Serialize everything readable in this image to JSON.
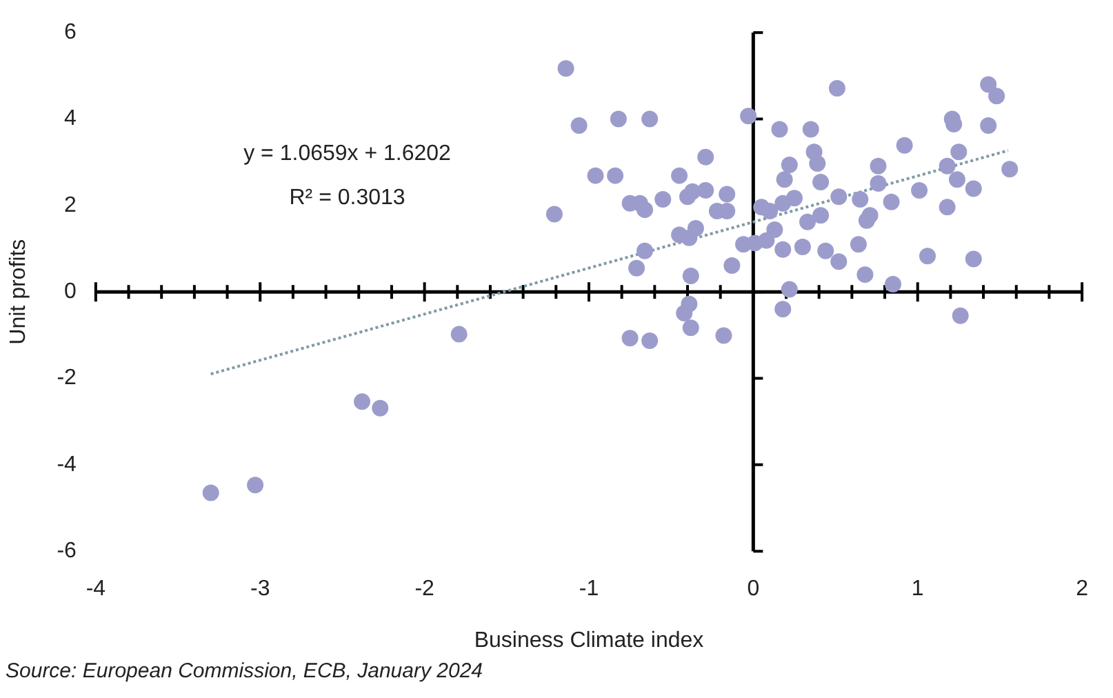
{
  "chart_data": {
    "type": "scatter",
    "xlabel": "Business Climate index",
    "ylabel": "Unit profits",
    "annotations": [
      "y = 1.0659x + 1.6202",
      "R² = 0.3013",
      "Source: European Commission, ECB, January 2024"
    ],
    "xlim": [
      -4,
      2
    ],
    "xticks": [
      -4,
      -3,
      -2,
      -1,
      0,
      1,
      2
    ],
    "ylim": [
      -6,
      6
    ],
    "yticks": [
      -6,
      -4,
      -2,
      0,
      2,
      4,
      6
    ],
    "legend": false,
    "series": [
      {
        "marker": "circle",
        "color": "#9c9ccc",
        "x": [
          -3.3,
          -3.03,
          -2.38,
          -2.27,
          -1.79,
          -1.21,
          -1.14,
          -1.06,
          -0.82,
          -0.63,
          -0.96,
          -0.84,
          -0.29,
          -0.45,
          -0.75,
          -0.69,
          -0.66,
          -0.55,
          -0.4,
          -0.37,
          -0.29,
          -0.16,
          -0.22,
          -0.16,
          -0.03,
          -0.45,
          -0.39,
          -0.35,
          -0.66,
          -0.71,
          -0.38,
          -0.13,
          -0.39,
          -0.42,
          -0.38,
          -0.75,
          -0.63,
          -0.18,
          -0.06,
          0.01,
          0.05,
          0.16,
          0.35,
          0.51,
          0.37,
          0.39,
          0.22,
          0.19,
          0.41,
          0.52,
          0.25,
          0.18,
          0.1,
          0.33,
          0.41,
          0.13,
          0.08,
          0.18,
          0.3,
          0.44,
          0.52,
          0.22,
          0.18,
          0.64,
          0.68,
          0.69,
          0.71,
          0.65,
          0.76,
          0.76,
          0.84,
          0.92,
          0.85,
          1.01,
          1.06,
          1.18,
          1.18,
          1.24,
          1.25,
          1.21,
          1.22,
          1.34,
          1.34,
          1.26,
          1.43,
          1.43,
          1.48,
          1.56
        ],
        "values": [
          -4.65,
          -4.47,
          -2.54,
          -2.69,
          -0.98,
          1.8,
          5.17,
          3.85,
          4.0,
          4.0,
          2.69,
          2.69,
          3.12,
          2.69,
          2.05,
          2.05,
          1.9,
          2.14,
          2.2,
          2.32,
          2.35,
          2.26,
          1.87,
          1.87,
          4.07,
          1.32,
          1.25,
          1.47,
          0.95,
          0.55,
          0.37,
          0.61,
          -0.28,
          -0.49,
          -0.83,
          -1.07,
          -1.13,
          -1.01,
          1.1,
          1.13,
          1.96,
          3.76,
          3.76,
          4.71,
          3.24,
          2.97,
          2.94,
          2.6,
          2.54,
          2.2,
          2.17,
          2.05,
          1.87,
          1.62,
          1.77,
          1.44,
          1.19,
          0.98,
          1.04,
          0.95,
          0.7,
          0.06,
          -0.4,
          1.1,
          0.4,
          1.65,
          1.77,
          2.14,
          2.51,
          2.91,
          2.08,
          3.39,
          0.18,
          2.35,
          0.83,
          1.96,
          2.91,
          2.6,
          3.24,
          4.0,
          3.88,
          2.39,
          0.76,
          -0.55,
          3.85,
          4.8,
          4.53,
          2.84
        ]
      },
      {
        "type": "line",
        "line_style": "dotted",
        "marker": "none",
        "color": "#7f9aa5",
        "x": [
          -3.3,
          1.55
        ],
        "values": [
          -1.9,
          3.27
        ]
      }
    ]
  }
}
